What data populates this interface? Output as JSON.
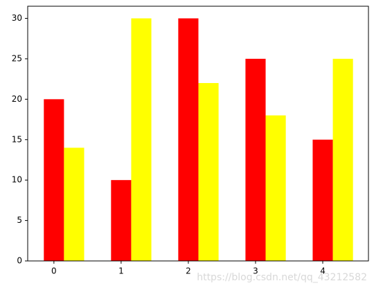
{
  "chart_data": {
    "type": "bar",
    "x": [
      0,
      1,
      2,
      3,
      4
    ],
    "series": [
      {
        "color": "#ff0000",
        "values": [
          20,
          10,
          30,
          25,
          15
        ]
      },
      {
        "color": "#ffff00",
        "values": [
          14,
          30,
          22,
          18,
          25
        ]
      }
    ],
    "xlim": [
      -0.39,
      4.68
    ],
    "xticks": [
      0,
      1,
      2,
      3,
      4
    ],
    "ylim": [
      0,
      31.5
    ],
    "yticks": [
      0,
      5,
      10,
      15,
      20,
      25,
      30
    ],
    "grid": false,
    "watermark": "https://blog.csdn.net/qq_43212582"
  }
}
